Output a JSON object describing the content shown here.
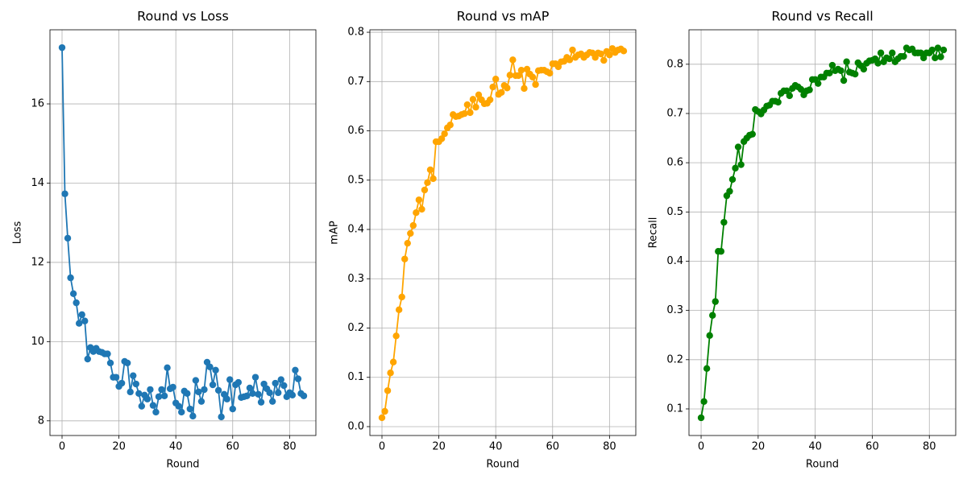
{
  "chart_data": [
    {
      "type": "line",
      "title": "Round vs Loss",
      "xlabel": "Round",
      "ylabel": "Loss",
      "grid": true,
      "marker": "o",
      "xlim": [
        -4.25,
        89.25
      ],
      "ylim": [
        7.63,
        17.87
      ],
      "xticks": [
        0,
        20,
        40,
        60,
        80
      ],
      "yticks": [
        8,
        10,
        12,
        14,
        16
      ],
      "x": [
        0,
        1,
        2,
        3,
        4,
        5,
        6,
        7,
        8,
        9,
        10,
        11,
        12,
        13,
        14,
        15,
        16,
        17,
        18,
        19,
        20,
        21,
        22,
        23,
        24,
        25,
        26,
        27,
        28,
        29,
        30,
        31,
        32,
        33,
        34,
        35,
        36,
        37,
        38,
        39,
        40,
        41,
        42,
        43,
        44,
        45,
        46,
        47,
        48,
        49,
        50,
        51,
        52,
        53,
        54,
        55,
        56,
        57,
        58,
        59,
        60,
        61,
        62,
        63,
        64,
        65,
        66,
        67,
        68,
        69,
        70,
        71,
        72,
        73,
        74,
        75,
        76,
        77,
        78,
        79,
        80,
        81,
        82,
        83,
        84,
        85
      ],
      "series": [
        {
          "color": "#1f77b4",
          "values": [
            17.42,
            13.73,
            12.61,
            11.61,
            11.21,
            10.98,
            10.46,
            10.68,
            10.52,
            9.56,
            9.85,
            9.75,
            9.83,
            9.75,
            9.73,
            9.69,
            9.69,
            9.46,
            9.1,
            9.1,
            8.87,
            8.95,
            9.5,
            9.46,
            8.73,
            9.14,
            8.93,
            8.69,
            8.37,
            8.65,
            8.55,
            8.79,
            8.39,
            8.22,
            8.61,
            8.79,
            8.63,
            9.34,
            8.81,
            8.85,
            8.45,
            8.37,
            8.22,
            8.75,
            8.69,
            8.3,
            8.12,
            9.02,
            8.73,
            8.49,
            8.79,
            9.48,
            9.36,
            8.91,
            9.28,
            8.77,
            8.1,
            8.67,
            8.55,
            9.04,
            8.3,
            8.91,
            8.97,
            8.59,
            8.61,
            8.63,
            8.83,
            8.69,
            9.1,
            8.67,
            8.47,
            8.93,
            8.81,
            8.71,
            8.49,
            8.95,
            8.71,
            9.04,
            8.89,
            8.61,
            8.71,
            8.65,
            9.28,
            9.06,
            8.69,
            8.63
          ]
        }
      ]
    },
    {
      "type": "line",
      "title": "Round vs mAP",
      "xlabel": "Round",
      "ylabel": "mAP",
      "grid": true,
      "marker": "o",
      "xlim": [
        -4.25,
        89.25
      ],
      "ylim": [
        -0.018,
        0.805
      ],
      "xticks": [
        0,
        20,
        40,
        60,
        80
      ],
      "yticks": [
        {
          "value": 0,
          "label": "0.0"
        },
        0.1,
        0.2,
        0.3,
        0.4,
        0.5,
        0.6,
        0.7,
        0.8
      ],
      "x": [
        0,
        1,
        2,
        3,
        4,
        5,
        6,
        7,
        8,
        9,
        10,
        11,
        12,
        13,
        14,
        15,
        16,
        17,
        18,
        19,
        20,
        21,
        22,
        23,
        24,
        25,
        26,
        27,
        28,
        29,
        30,
        31,
        32,
        33,
        34,
        35,
        36,
        37,
        38,
        39,
        40,
        41,
        42,
        43,
        44,
        45,
        46,
        47,
        48,
        49,
        50,
        51,
        52,
        53,
        54,
        55,
        56,
        57,
        58,
        59,
        60,
        61,
        62,
        63,
        64,
        65,
        66,
        67,
        68,
        69,
        70,
        71,
        72,
        73,
        74,
        75,
        76,
        77,
        78,
        79,
        80,
        81,
        82,
        83,
        84,
        85
      ],
      "series": [
        {
          "color": "#ffa500",
          "values": [
            0.018,
            0.031,
            0.073,
            0.109,
            0.131,
            0.184,
            0.237,
            0.263,
            0.34,
            0.372,
            0.392,
            0.408,
            0.434,
            0.46,
            0.441,
            0.48,
            0.495,
            0.521,
            0.503,
            0.578,
            0.578,
            0.584,
            0.594,
            0.606,
            0.612,
            0.633,
            0.629,
            0.63,
            0.633,
            0.635,
            0.653,
            0.637,
            0.664,
            0.648,
            0.673,
            0.663,
            0.655,
            0.656,
            0.663,
            0.689,
            0.705,
            0.674,
            0.678,
            0.692,
            0.687,
            0.713,
            0.744,
            0.712,
            0.712,
            0.723,
            0.686,
            0.725,
            0.715,
            0.709,
            0.694,
            0.722,
            0.723,
            0.723,
            0.72,
            0.717,
            0.736,
            0.736,
            0.73,
            0.74,
            0.741,
            0.749,
            0.744,
            0.764,
            0.749,
            0.754,
            0.756,
            0.749,
            0.754,
            0.759,
            0.758,
            0.749,
            0.758,
            0.756,
            0.743,
            0.761,
            0.754,
            0.767,
            0.759,
            0.764,
            0.766,
            0.762
          ]
        }
      ]
    },
    {
      "type": "line",
      "title": "Round vs Recall",
      "xlabel": "Round",
      "ylabel": "Recall",
      "grid": true,
      "marker": "o",
      "xlim": [
        -4.25,
        89.25
      ],
      "ylim": [
        0.046,
        0.87
      ],
      "xticks": [
        0,
        20,
        40,
        60,
        80
      ],
      "yticks": [
        0.1,
        0.2,
        0.3,
        0.4,
        0.5,
        0.6,
        0.7,
        0.8
      ],
      "x": [
        0,
        1,
        2,
        3,
        4,
        5,
        6,
        7,
        8,
        9,
        10,
        11,
        12,
        13,
        14,
        15,
        16,
        17,
        18,
        19,
        20,
        21,
        22,
        23,
        24,
        25,
        26,
        27,
        28,
        29,
        30,
        31,
        32,
        33,
        34,
        35,
        36,
        37,
        38,
        39,
        40,
        41,
        42,
        43,
        44,
        45,
        46,
        47,
        48,
        49,
        50,
        51,
        52,
        53,
        54,
        55,
        56,
        57,
        58,
        59,
        60,
        61,
        62,
        63,
        64,
        65,
        66,
        67,
        68,
        69,
        70,
        71,
        72,
        73,
        74,
        75,
        76,
        77,
        78,
        79,
        80,
        81,
        82,
        83,
        84,
        85
      ],
      "series": [
        {
          "color": "#008000",
          "values": [
            0.082,
            0.115,
            0.182,
            0.249,
            0.29,
            0.318,
            0.42,
            0.42,
            0.479,
            0.533,
            0.542,
            0.566,
            0.589,
            0.632,
            0.596,
            0.643,
            0.65,
            0.656,
            0.658,
            0.708,
            0.704,
            0.699,
            0.707,
            0.715,
            0.717,
            0.725,
            0.725,
            0.723,
            0.741,
            0.746,
            0.746,
            0.736,
            0.751,
            0.757,
            0.754,
            0.749,
            0.738,
            0.746,
            0.748,
            0.769,
            0.769,
            0.761,
            0.774,
            0.774,
            0.782,
            0.782,
            0.798,
            0.787,
            0.79,
            0.787,
            0.767,
            0.805,
            0.784,
            0.782,
            0.78,
            0.803,
            0.797,
            0.79,
            0.802,
            0.807,
            0.808,
            0.811,
            0.802,
            0.823,
            0.805,
            0.813,
            0.811,
            0.823,
            0.805,
            0.811,
            0.816,
            0.816,
            0.833,
            0.829,
            0.831,
            0.823,
            0.823,
            0.823,
            0.813,
            0.823,
            0.823,
            0.829,
            0.813,
            0.833,
            0.815,
            0.829
          ]
        }
      ]
    }
  ]
}
